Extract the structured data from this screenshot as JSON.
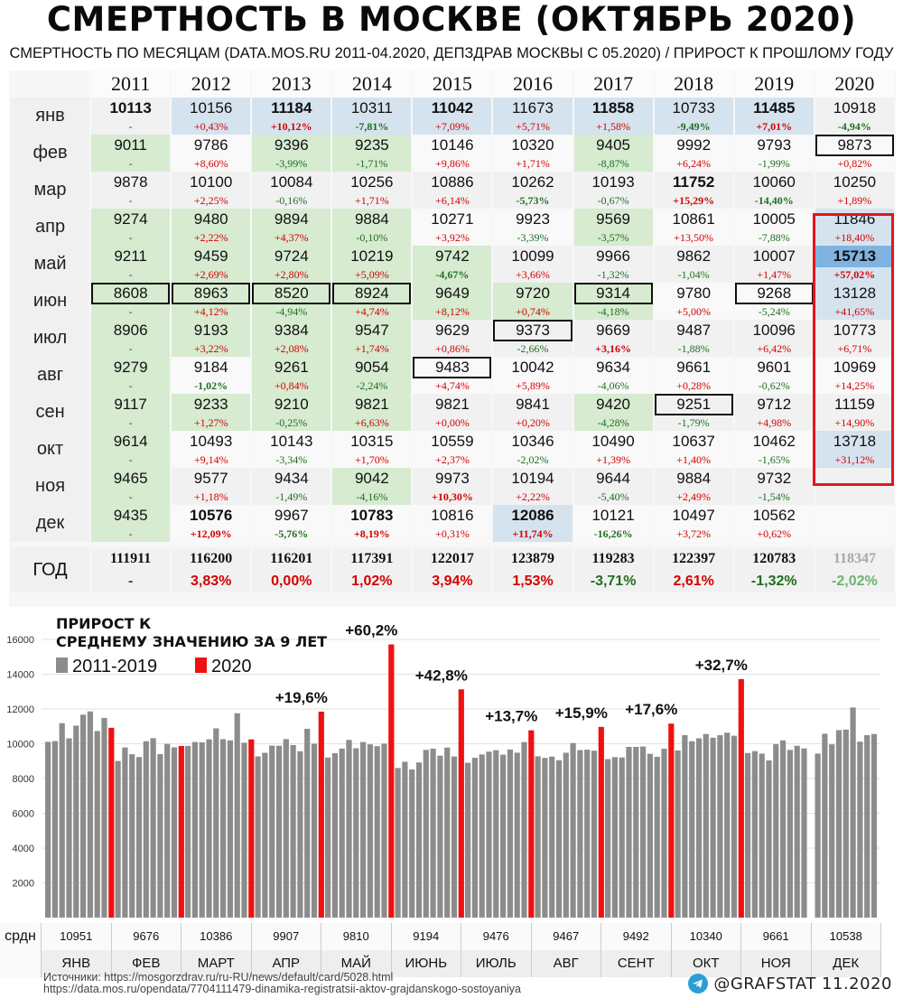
{
  "title": "СМЕРТНОСТЬ В МОСКВЕ (ОКТЯБРЬ 2020)",
  "subtitle": "СМЕРТНОСТЬ ПО МЕСЯЦАМ (DATA.MOS.RU 2011-04.2020, ДЕПЗДРАВ МОСКВЫ С 05.2020) / ПРИРОСТ К ПРОШЛОМУ ГОДУ",
  "table": {
    "years": [
      "2011",
      "2012",
      "2013",
      "2014",
      "2015",
      "2016",
      "2017",
      "2018",
      "2019",
      "2020"
    ],
    "months": [
      "янв",
      "фев",
      "мар",
      "апр",
      "май",
      "июн",
      "июл",
      "авг",
      "сен",
      "окт",
      "ноя",
      "дек"
    ],
    "values": [
      [
        "10113",
        "10156",
        "11184",
        "10311",
        "11042",
        "11673",
        "11858",
        "10733",
        "11485",
        "10918"
      ],
      [
        "9011",
        "9786",
        "9396",
        "9235",
        "10146",
        "10320",
        "9405",
        "9992",
        "9793",
        "9873"
      ],
      [
        "9878",
        "10100",
        "10084",
        "10256",
        "10886",
        "10262",
        "10193",
        "11752",
        "10060",
        "10250"
      ],
      [
        "9274",
        "9480",
        "9894",
        "9884",
        "10271",
        "9923",
        "9569",
        "10861",
        "10005",
        "11846"
      ],
      [
        "9211",
        "9459",
        "9724",
        "10219",
        "9742",
        "10099",
        "9966",
        "9862",
        "10007",
        "15713"
      ],
      [
        "8608",
        "8963",
        "8520",
        "8924",
        "9649",
        "9720",
        "9314",
        "9780",
        "9268",
        "13128"
      ],
      [
        "8906",
        "9193",
        "9384",
        "9547",
        "9629",
        "9373",
        "9669",
        "9487",
        "10096",
        "10773"
      ],
      [
        "9279",
        "9184",
        "9261",
        "9054",
        "9483",
        "10042",
        "9634",
        "9661",
        "9601",
        "10969"
      ],
      [
        "9117",
        "9233",
        "9210",
        "9821",
        "9821",
        "9841",
        "9420",
        "9251",
        "9712",
        "11159"
      ],
      [
        "9614",
        "10493",
        "10143",
        "10315",
        "10559",
        "10346",
        "10490",
        "10637",
        "10462",
        "13718"
      ],
      [
        "9465",
        "9577",
        "9434",
        "9042",
        "9973",
        "10194",
        "9644",
        "9884",
        "9732",
        ""
      ],
      [
        "9435",
        "10576",
        "9967",
        "10783",
        "10816",
        "12086",
        "10121",
        "10497",
        "10562",
        ""
      ]
    ],
    "pct": [
      [
        "-",
        "+0,43%",
        "+10,12%",
        "-7,81%",
        "+7,09%",
        "+5,71%",
        "+1,58%",
        "-9,49%",
        "+7,01%",
        "-4,94%"
      ],
      [
        "-",
        "+8,60%",
        "-3,99%",
        "-1,71%",
        "+9,86%",
        "+1,71%",
        "-8,87%",
        "+6,24%",
        "-1,99%",
        "+0,82%"
      ],
      [
        "-",
        "+2,25%",
        "-0,16%",
        "+1,71%",
        "+6,14%",
        "-5,73%",
        "-0,67%",
        "+15,29%",
        "-14,40%",
        "+1,89%"
      ],
      [
        "-",
        "+2,22%",
        "+4,37%",
        "-0,10%",
        "+3,92%",
        "-3,39%",
        "-3,57%",
        "+13,50%",
        "-7,88%",
        "+18,40%"
      ],
      [
        "-",
        "+2,69%",
        "+2,80%",
        "+5,09%",
        "-4,67%",
        "+3,66%",
        "-1,32%",
        "-1,04%",
        "+1,47%",
        "+57,02%"
      ],
      [
        "-",
        "+4,12%",
        "-4,94%",
        "+4,74%",
        "+8,12%",
        "+0,74%",
        "-4,18%",
        "+5,00%",
        "-5,24%",
        "+41,65%"
      ],
      [
        "-",
        "+3,22%",
        "+2,08%",
        "+1,74%",
        "+0,86%",
        "-2,66%",
        "+3,16%",
        "-1,88%",
        "+6,42%",
        "+6,71%"
      ],
      [
        "-",
        "-1,02%",
        "+0,84%",
        "-2,24%",
        "+4,74%",
        "+5,89%",
        "-4,06%",
        "+0,28%",
        "-0,62%",
        "+14,25%"
      ],
      [
        "-",
        "+1,27%",
        "-0,25%",
        "+6,63%",
        "+0,00%",
        "+0,20%",
        "-4,28%",
        "-1,79%",
        "+4,98%",
        "+14,90%"
      ],
      [
        "-",
        "+9,14%",
        "-3,34%",
        "+1,70%",
        "+2,37%",
        "-2,02%",
        "+1,39%",
        "+1,40%",
        "-1,65%",
        "+31,12%"
      ],
      [
        "-",
        "+1,18%",
        "-1,49%",
        "-4,16%",
        "+10,30%",
        "+2,22%",
        "-5,40%",
        "+2,49%",
        "-1,54%",
        ""
      ],
      [
        "-",
        "+12,09%",
        "-5,76%",
        "+8,19%",
        "+0,31%",
        "+11,74%",
        "-16,26%",
        "+3,72%",
        "+0,62%",
        ""
      ]
    ],
    "year_label": "ГОД",
    "year_totals": [
      "111911",
      "116200",
      "116201",
      "117391",
      "122017",
      "123879",
      "119283",
      "122397",
      "120783",
      "118347"
    ],
    "year_pct": [
      "-",
      "3,83%",
      "0,00%",
      "1,02%",
      "3,94%",
      "1,53%",
      "-3,71%",
      "2,61%",
      "-1,32%",
      "-2,02%"
    ]
  },
  "chart_data": {
    "type": "bar",
    "title": "ПРИРОСТ К СРЕДНЕМУ ЗНАЧЕНИЮ ЗА 9 ЛЕТ",
    "legend": [
      {
        "name": "2011-2019",
        "color": "#8c8c8c"
      },
      {
        "name": "2020",
        "color": "#ee1111"
      }
    ],
    "legend_position": "top-left",
    "ylim": [
      0,
      16000
    ],
    "yticks": [
      "2000",
      "4000",
      "6000",
      "8000",
      "10000",
      "12000",
      "14000",
      "16000"
    ],
    "categories": [
      "ЯНВ",
      "ФЕВ",
      "МАРТ",
      "АПР",
      "МАЙ",
      "ИЮНЬ",
      "ИЮЛЬ",
      "АВГ",
      "СЕНТ",
      "ОКТ",
      "НОЯ",
      "ДЕК"
    ],
    "series_2011_2019": [
      [
        10113,
        10156,
        11184,
        10311,
        11042,
        11673,
        11858,
        10733,
        11485
      ],
      [
        9011,
        9786,
        9396,
        9235,
        10146,
        10320,
        9405,
        9992,
        9793
      ],
      [
        9878,
        10100,
        10084,
        10256,
        10886,
        10262,
        10193,
        11752,
        10060
      ],
      [
        9274,
        9480,
        9894,
        9884,
        10271,
        9923,
        9569,
        10861,
        10005
      ],
      [
        9211,
        9459,
        9724,
        10219,
        9742,
        10099,
        9966,
        9862,
        10007
      ],
      [
        8608,
        8963,
        8520,
        8924,
        9649,
        9720,
        9314,
        9780,
        9268
      ],
      [
        8906,
        9193,
        9384,
        9547,
        9629,
        9373,
        9669,
        9487,
        10096
      ],
      [
        9279,
        9184,
        9261,
        9054,
        9483,
        10042,
        9634,
        9661,
        9601
      ],
      [
        9117,
        9233,
        9210,
        9821,
        9821,
        9841,
        9420,
        9251,
        9712
      ],
      [
        9614,
        10493,
        10143,
        10315,
        10559,
        10346,
        10490,
        10637,
        10462
      ],
      [
        9465,
        9577,
        9434,
        9042,
        9973,
        10194,
        9644,
        9884,
        9732
      ],
      [
        9435,
        10576,
        9967,
        10783,
        10816,
        12086,
        10121,
        10497,
        10562
      ]
    ],
    "series_2020": [
      10918,
      9873,
      10250,
      11846,
      15713,
      13128,
      10773,
      10969,
      11159,
      13718,
      null,
      null
    ],
    "annotations": [
      "",
      "",
      "",
      "+19,6%",
      "+60,2%",
      "+42,8%",
      "+13,7%",
      "+15,9%",
      "+17,6%",
      "+32,7%",
      "",
      ""
    ],
    "mean_label": "срдн",
    "means": [
      "10951",
      "9676",
      "10386",
      "9907",
      "9810",
      "9194",
      "9476",
      "9467",
      "9492",
      "10340",
      "9661",
      "10538"
    ]
  },
  "footer": {
    "sources_line1": "Источники: https://mosgorzdrav.ru/ru-RU/news/default/card/5028.html",
    "sources_line2": "https://data.mos.ru/opendata/7704111479-dinamika-registratsii-aktov-grajdanskogo-sostoyaniya",
    "brand": "@GRAFSTAT 11.2020"
  }
}
